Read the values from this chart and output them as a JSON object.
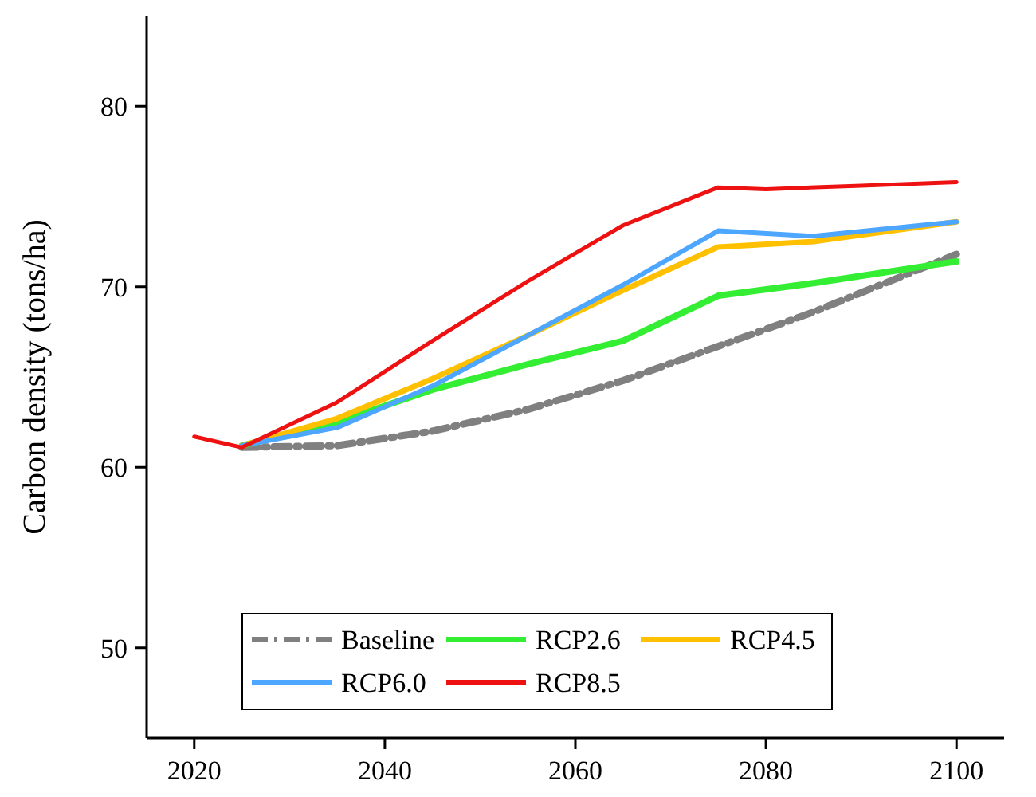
{
  "chart_data": {
    "type": "line",
    "ylabel": "Carbon density (tons/ha)",
    "xlim": [
      2015,
      2105
    ],
    "xticks": [
      2020,
      2040,
      2060,
      2080,
      2100
    ],
    "ylim": [
      45,
      85
    ],
    "yticks": [
      50,
      60,
      70,
      80
    ],
    "grid": false,
    "legend": "bottom",
    "marker": "none",
    "series": [
      {
        "name": "Baseline",
        "color": "#808080",
        "line_style": "dashdot",
        "x": [
          2025,
          2035,
          2045,
          2055,
          2065,
          2075,
          2085,
          2100
        ],
        "values": [
          61.1,
          61.2,
          62.0,
          63.2,
          64.8,
          66.7,
          68.6,
          71.8
        ]
      },
      {
        "name": "RCP2.6",
        "color": "#33ee33",
        "x": [
          2025,
          2035,
          2045,
          2055,
          2065,
          2075,
          2085,
          2100
        ],
        "values": [
          61.2,
          62.5,
          64.3,
          65.7,
          67.0,
          69.5,
          70.2,
          71.4
        ]
      },
      {
        "name": "RCP4.5",
        "color": "#ffc000",
        "x": [
          2025,
          2035,
          2045,
          2055,
          2065,
          2075,
          2085,
          2100
        ],
        "values": [
          61.2,
          62.7,
          64.9,
          67.3,
          69.8,
          72.2,
          72.5,
          73.6
        ]
      },
      {
        "name": "RCP6.0",
        "color": "#4da6ff",
        "x": [
          2025,
          2035,
          2045,
          2055,
          2065,
          2075,
          2085,
          2100
        ],
        "values": [
          61.2,
          62.2,
          64.5,
          67.3,
          70.1,
          73.1,
          72.8,
          73.6
        ]
      },
      {
        "name": "RCP8.5",
        "color": "#ee1111",
        "x": [
          2020,
          2025,
          2035,
          2045,
          2055,
          2065,
          2075,
          2080,
          2090,
          2100
        ],
        "values": [
          61.7,
          61.1,
          63.6,
          67.0,
          70.3,
          73.4,
          75.5,
          75.4,
          75.6,
          75.8
        ]
      }
    ]
  }
}
